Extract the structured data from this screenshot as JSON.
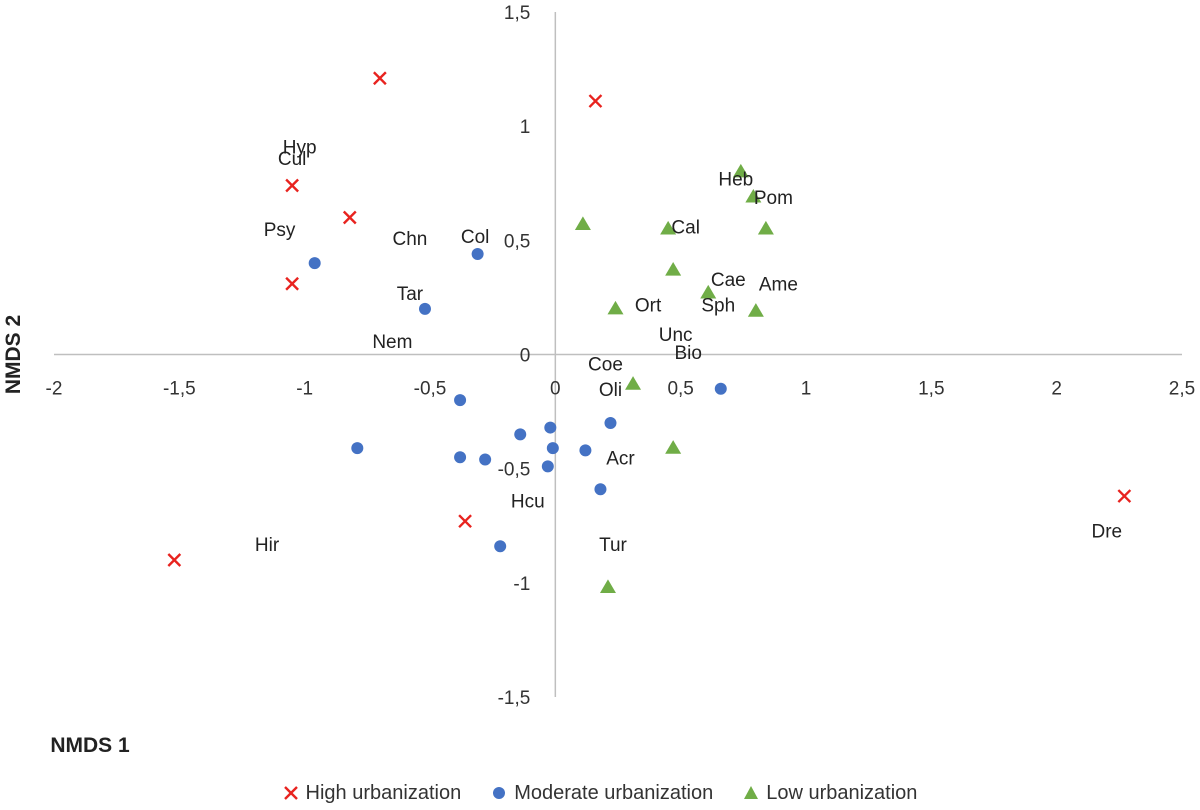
{
  "chart_data": {
    "type": "scatter",
    "title": "",
    "xlabel": "NMDS 1",
    "ylabel": "NMDS 2",
    "xlim": [
      -2,
      2.5
    ],
    "ylim": [
      -1.5,
      1.5
    ],
    "grid": false,
    "x_ticks": [
      "-2",
      "-1,5",
      "-1",
      "-0,5",
      "0",
      "0,5",
      "1",
      "1,5",
      "2",
      "2,5"
    ],
    "y_ticks": [
      "1,5",
      "1",
      "0,5",
      "0",
      "-0,5",
      "-1",
      "-1,5"
    ],
    "legend_position": "bottom",
    "series": [
      {
        "name": "High urbanization",
        "marker": "x",
        "color": "#e8231f",
        "points": [
          {
            "x": -0.7,
            "y": 1.21
          },
          {
            "x": 0.16,
            "y": 1.11
          },
          {
            "x": -1.05,
            "y": 0.74
          },
          {
            "x": -0.82,
            "y": 0.6
          },
          {
            "x": -1.05,
            "y": 0.31
          },
          {
            "x": -0.36,
            "y": -0.73
          },
          {
            "x": -1.52,
            "y": -0.9
          },
          {
            "x": 2.27,
            "y": -0.62
          }
        ]
      },
      {
        "name": "Moderate urbanization",
        "marker": "circle",
        "color": "#4472c4",
        "points": [
          {
            "x": -0.31,
            "y": 0.44
          },
          {
            "x": -0.96,
            "y": 0.4
          },
          {
            "x": -0.52,
            "y": 0.2
          },
          {
            "x": -0.38,
            "y": -0.2
          },
          {
            "x": 0.66,
            "y": -0.15
          },
          {
            "x": -0.79,
            "y": -0.41
          },
          {
            "x": -0.14,
            "y": -0.35
          },
          {
            "x": -0.02,
            "y": -0.32
          },
          {
            "x": 0.22,
            "y": -0.3
          },
          {
            "x": -0.01,
            "y": -0.41
          },
          {
            "x": 0.12,
            "y": -0.42
          },
          {
            "x": -0.38,
            "y": -0.45
          },
          {
            "x": -0.28,
            "y": -0.46
          },
          {
            "x": -0.03,
            "y": -0.49
          },
          {
            "x": 0.18,
            "y": -0.59
          },
          {
            "x": -0.22,
            "y": -0.84
          }
        ]
      },
      {
        "name": "Low urbanization",
        "marker": "triangle",
        "color": "#70ad47",
        "points": [
          {
            "x": 0.74,
            "y": 0.8
          },
          {
            "x": 0.79,
            "y": 0.69
          },
          {
            "x": 0.11,
            "y": 0.57
          },
          {
            "x": 0.45,
            "y": 0.55
          },
          {
            "x": 0.84,
            "y": 0.55
          },
          {
            "x": 0.47,
            "y": 0.37
          },
          {
            "x": 0.61,
            "y": 0.27
          },
          {
            "x": 0.24,
            "y": 0.2
          },
          {
            "x": 0.8,
            "y": 0.19
          },
          {
            "x": 0.31,
            "y": -0.13
          },
          {
            "x": 0.47,
            "y": -0.41
          },
          {
            "x": 0.21,
            "y": -1.02
          }
        ]
      }
    ],
    "annotations": [
      {
        "text": "Hyp",
        "x": -1.02,
        "y": 0.91
      },
      {
        "text": "Cul",
        "x": -1.05,
        "y": 0.86
      },
      {
        "text": "Psy",
        "x": -1.1,
        "y": 0.55
      },
      {
        "text": "Chn",
        "x": -0.58,
        "y": 0.51
      },
      {
        "text": "Col",
        "x": -0.32,
        "y": 0.52
      },
      {
        "text": "Tar",
        "x": -0.58,
        "y": 0.27
      },
      {
        "text": "Nem",
        "x": -0.65,
        "y": 0.06
      },
      {
        "text": "Heb",
        "x": 0.72,
        "y": 0.77
      },
      {
        "text": "Pom",
        "x": 0.87,
        "y": 0.69
      },
      {
        "text": "Cal",
        "x": 0.52,
        "y": 0.56
      },
      {
        "text": "Cae",
        "x": 0.69,
        "y": 0.33
      },
      {
        "text": "Ame",
        "x": 0.89,
        "y": 0.31
      },
      {
        "text": "Ort",
        "x": 0.37,
        "y": 0.22
      },
      {
        "text": "Sph",
        "x": 0.65,
        "y": 0.22
      },
      {
        "text": "Unc",
        "x": 0.48,
        "y": 0.09
      },
      {
        "text": "Bio",
        "x": 0.53,
        "y": 0.01
      },
      {
        "text": "Coe",
        "x": 0.2,
        "y": -0.04
      },
      {
        "text": "Oli",
        "x": 0.22,
        "y": -0.15
      },
      {
        "text": "Acr",
        "x": 0.26,
        "y": -0.45
      },
      {
        "text": "Hcu",
        "x": -0.11,
        "y": -0.64
      },
      {
        "text": "Tur",
        "x": 0.23,
        "y": -0.83
      },
      {
        "text": "Hir",
        "x": -1.15,
        "y": -0.83
      },
      {
        "text": "Dre",
        "x": 2.2,
        "y": -0.77
      }
    ]
  }
}
